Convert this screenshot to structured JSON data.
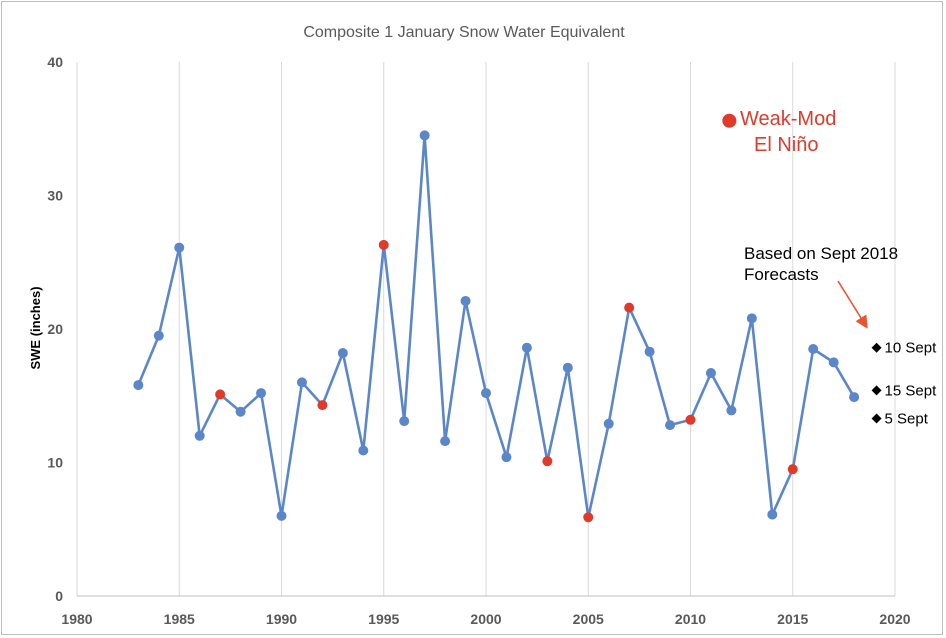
{
  "chart_data": {
    "type": "line",
    "title": "Composite 1 January Snow Water Equivalent",
    "xlabel": "",
    "ylabel": "SWE (inches)",
    "xlim": [
      1980,
      2020
    ],
    "ylim": [
      0,
      40
    ],
    "x_ticks": [
      1980,
      1985,
      1990,
      1995,
      2000,
      2005,
      2010,
      2015,
      2020
    ],
    "y_ticks": [
      0,
      10,
      20,
      30,
      40
    ],
    "grid": "vertical",
    "series": [
      {
        "name": "SWE",
        "color": "#5b87c9",
        "points": [
          {
            "x": 1983,
            "y": 15.8,
            "el_nino": false
          },
          {
            "x": 1984,
            "y": 19.5,
            "el_nino": false
          },
          {
            "x": 1985,
            "y": 26.1,
            "el_nino": false
          },
          {
            "x": 1986,
            "y": 12.0,
            "el_nino": false
          },
          {
            "x": 1987,
            "y": 15.1,
            "el_nino": true
          },
          {
            "x": 1988,
            "y": 13.8,
            "el_nino": false
          },
          {
            "x": 1989,
            "y": 15.2,
            "el_nino": false
          },
          {
            "x": 1990,
            "y": 6.0,
            "el_nino": false
          },
          {
            "x": 1991,
            "y": 16.0,
            "el_nino": false
          },
          {
            "x": 1992,
            "y": 14.3,
            "el_nino": true
          },
          {
            "x": 1993,
            "y": 18.2,
            "el_nino": false
          },
          {
            "x": 1994,
            "y": 10.9,
            "el_nino": false
          },
          {
            "x": 1995,
            "y": 26.3,
            "el_nino": true
          },
          {
            "x": 1996,
            "y": 13.1,
            "el_nino": false
          },
          {
            "x": 1997,
            "y": 34.5,
            "el_nino": false
          },
          {
            "x": 1998,
            "y": 11.6,
            "el_nino": false
          },
          {
            "x": 1999,
            "y": 22.1,
            "el_nino": false
          },
          {
            "x": 2000,
            "y": 15.2,
            "el_nino": false
          },
          {
            "x": 2001,
            "y": 10.4,
            "el_nino": false
          },
          {
            "x": 2002,
            "y": 18.6,
            "el_nino": false
          },
          {
            "x": 2003,
            "y": 10.1,
            "el_nino": true
          },
          {
            "x": 2004,
            "y": 17.1,
            "el_nino": false
          },
          {
            "x": 2005,
            "y": 5.9,
            "el_nino": true
          },
          {
            "x": 2006,
            "y": 12.9,
            "el_nino": false
          },
          {
            "x": 2007,
            "y": 21.6,
            "el_nino": true
          },
          {
            "x": 2008,
            "y": 18.3,
            "el_nino": false
          },
          {
            "x": 2009,
            "y": 12.8,
            "el_nino": false
          },
          {
            "x": 2010,
            "y": 13.2,
            "el_nino": true
          },
          {
            "x": 2011,
            "y": 16.7,
            "el_nino": false
          },
          {
            "x": 2012,
            "y": 13.9,
            "el_nino": false
          },
          {
            "x": 2013,
            "y": 20.8,
            "el_nino": false
          },
          {
            "x": 2014,
            "y": 6.1,
            "el_nino": false
          },
          {
            "x": 2015,
            "y": 9.5,
            "el_nino": true
          },
          {
            "x": 2016,
            "y": 18.5,
            "el_nino": false
          },
          {
            "x": 2017,
            "y": 17.5,
            "el_nino": false
          },
          {
            "x": 2018,
            "y": 14.9,
            "el_nino": false
          }
        ]
      }
    ],
    "highlight_color": "#e03a2a",
    "legend": {
      "label_line1": "Weak-Mod",
      "label_line2": "El Niño",
      "marker_x": 2011.9,
      "marker_y": 35.6
    },
    "annotation": {
      "line1": "Based on Sept 2018",
      "line2": "Forecasts"
    },
    "forecasts": [
      {
        "label": "10 Sept",
        "x": 2019,
        "y": 18.6
      },
      {
        "label": "15 Sept",
        "x": 2019,
        "y": 15.4
      },
      {
        "label": "5 Sept",
        "x": 2019,
        "y": 13.3
      }
    ]
  }
}
